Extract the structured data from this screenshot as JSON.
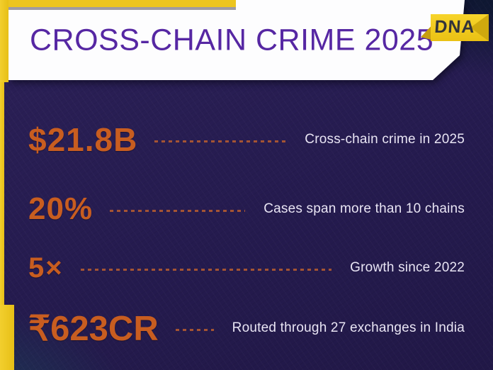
{
  "header": {
    "title": "CROSS-CHAIN CRIME 2025",
    "brand": "DNA"
  },
  "stats": [
    {
      "value": "$21.8B",
      "label": "Cross-chain crime in 2025"
    },
    {
      "value": "20%",
      "label": "Cases span more than 10 chains"
    },
    {
      "value": "5×",
      "label": "Growth since 2022"
    },
    {
      "value": "₹623CR",
      "label": "Routed through 27 exchanges in India"
    }
  ],
  "chart_data": {
    "type": "table",
    "title": "CROSS-CHAIN CRIME 2025",
    "rows": [
      {
        "value": "$21.8B",
        "label": "Cross-chain crime in 2025"
      },
      {
        "value": "20%",
        "label": "Cases span more than 10 chains"
      },
      {
        "value": "5×",
        "label": "Growth since 2022"
      },
      {
        "value": "₹623CR",
        "label": "Routed through 27 exchanges in India"
      }
    ]
  },
  "colors": {
    "accent_orange": "#c85d20",
    "title_purple": "#5627a3",
    "frame_yellow": "#ecc51f",
    "background_navy": "#251b4f",
    "label_white": "#e9e5f4",
    "badge_text": "#33343a"
  }
}
